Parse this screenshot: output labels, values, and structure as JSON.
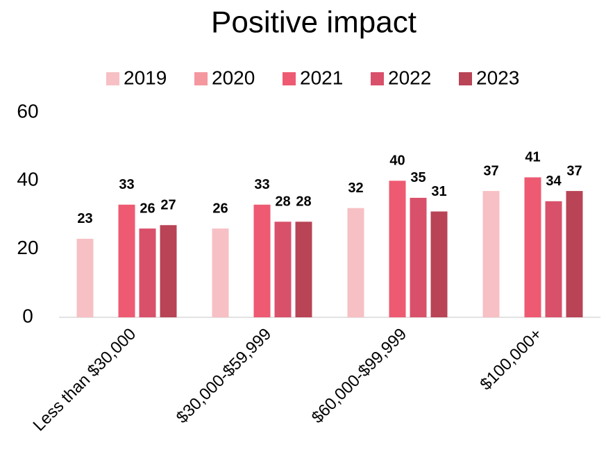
{
  "chart_data": {
    "type": "bar",
    "title": "Positive impact",
    "categories": [
      "Less than $30,000",
      "$30,000-$59,999",
      "$60,000-$99,999",
      "$100,000+"
    ],
    "series": [
      {
        "name": "2019",
        "color": "#f7c0c4",
        "values": [
          23,
          26,
          32,
          37
        ]
      },
      {
        "name": "2020",
        "color": "#f4979f",
        "values": [
          null,
          null,
          null,
          null
        ]
      },
      {
        "name": "2021",
        "color": "#ee5a72",
        "values": [
          33,
          33,
          40,
          41
        ]
      },
      {
        "name": "2022",
        "color": "#d9506a",
        "values": [
          26,
          28,
          35,
          34
        ]
      },
      {
        "name": "2023",
        "color": "#b84456",
        "values": [
          27,
          28,
          31,
          37
        ]
      }
    ],
    "ylim": [
      0,
      60
    ],
    "yticks": [
      0,
      20,
      40,
      60
    ],
    "grid": false,
    "legend": "top"
  }
}
